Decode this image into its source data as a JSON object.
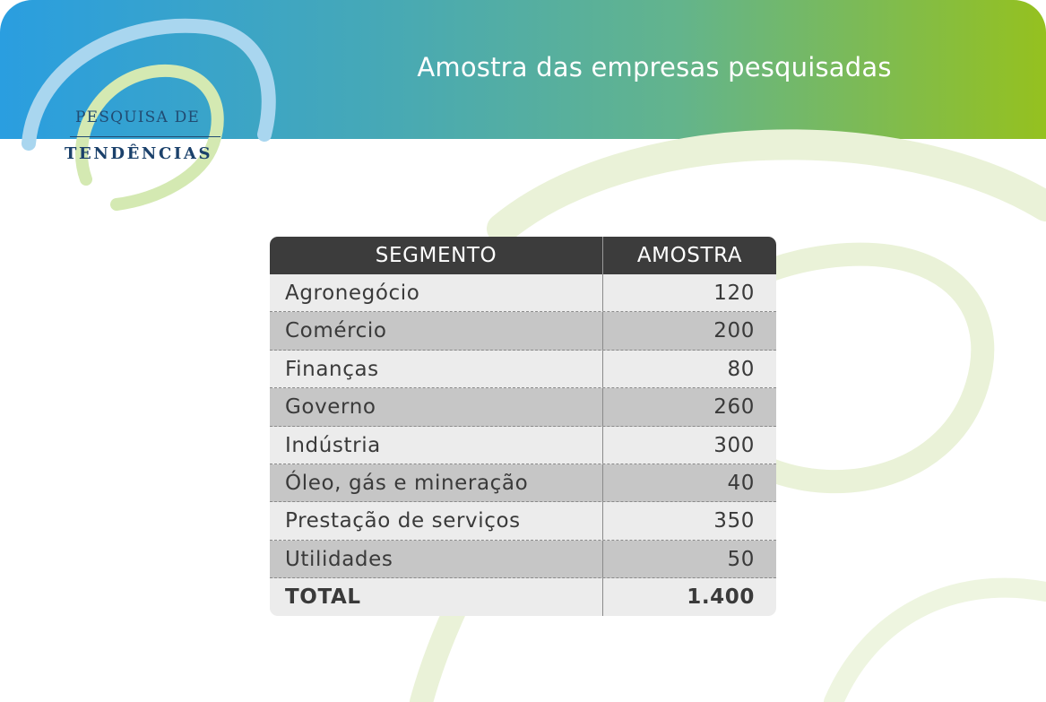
{
  "header": {
    "title": "Amostra das empresas pesquisadas"
  },
  "logo": {
    "line1": "PESQUISA DE",
    "line2": "TENDÊNCIAS"
  },
  "colors": {
    "gradient_start": "#2a9ee0",
    "gradient_end": "#95c11f",
    "table_header": "#3c3c3c",
    "row_light": "#ececec",
    "row_dark": "#c6c6c6"
  },
  "table": {
    "headers": [
      "SEGMENTO",
      "AMOSTRA"
    ],
    "rows": [
      {
        "segment": "Agronegócio",
        "sample": "120"
      },
      {
        "segment": "Comércio",
        "sample": "200"
      },
      {
        "segment": "Finanças",
        "sample": "80"
      },
      {
        "segment": "Governo",
        "sample": "260"
      },
      {
        "segment": "Indústria",
        "sample": "300"
      },
      {
        "segment": "Óleo, gás e mineração",
        "sample": "40"
      },
      {
        "segment": "Prestação de serviços",
        "sample": "350"
      },
      {
        "segment": "Utilidades",
        "sample": "50"
      }
    ],
    "total": {
      "label": "TOTAL",
      "value": "1.400"
    }
  }
}
